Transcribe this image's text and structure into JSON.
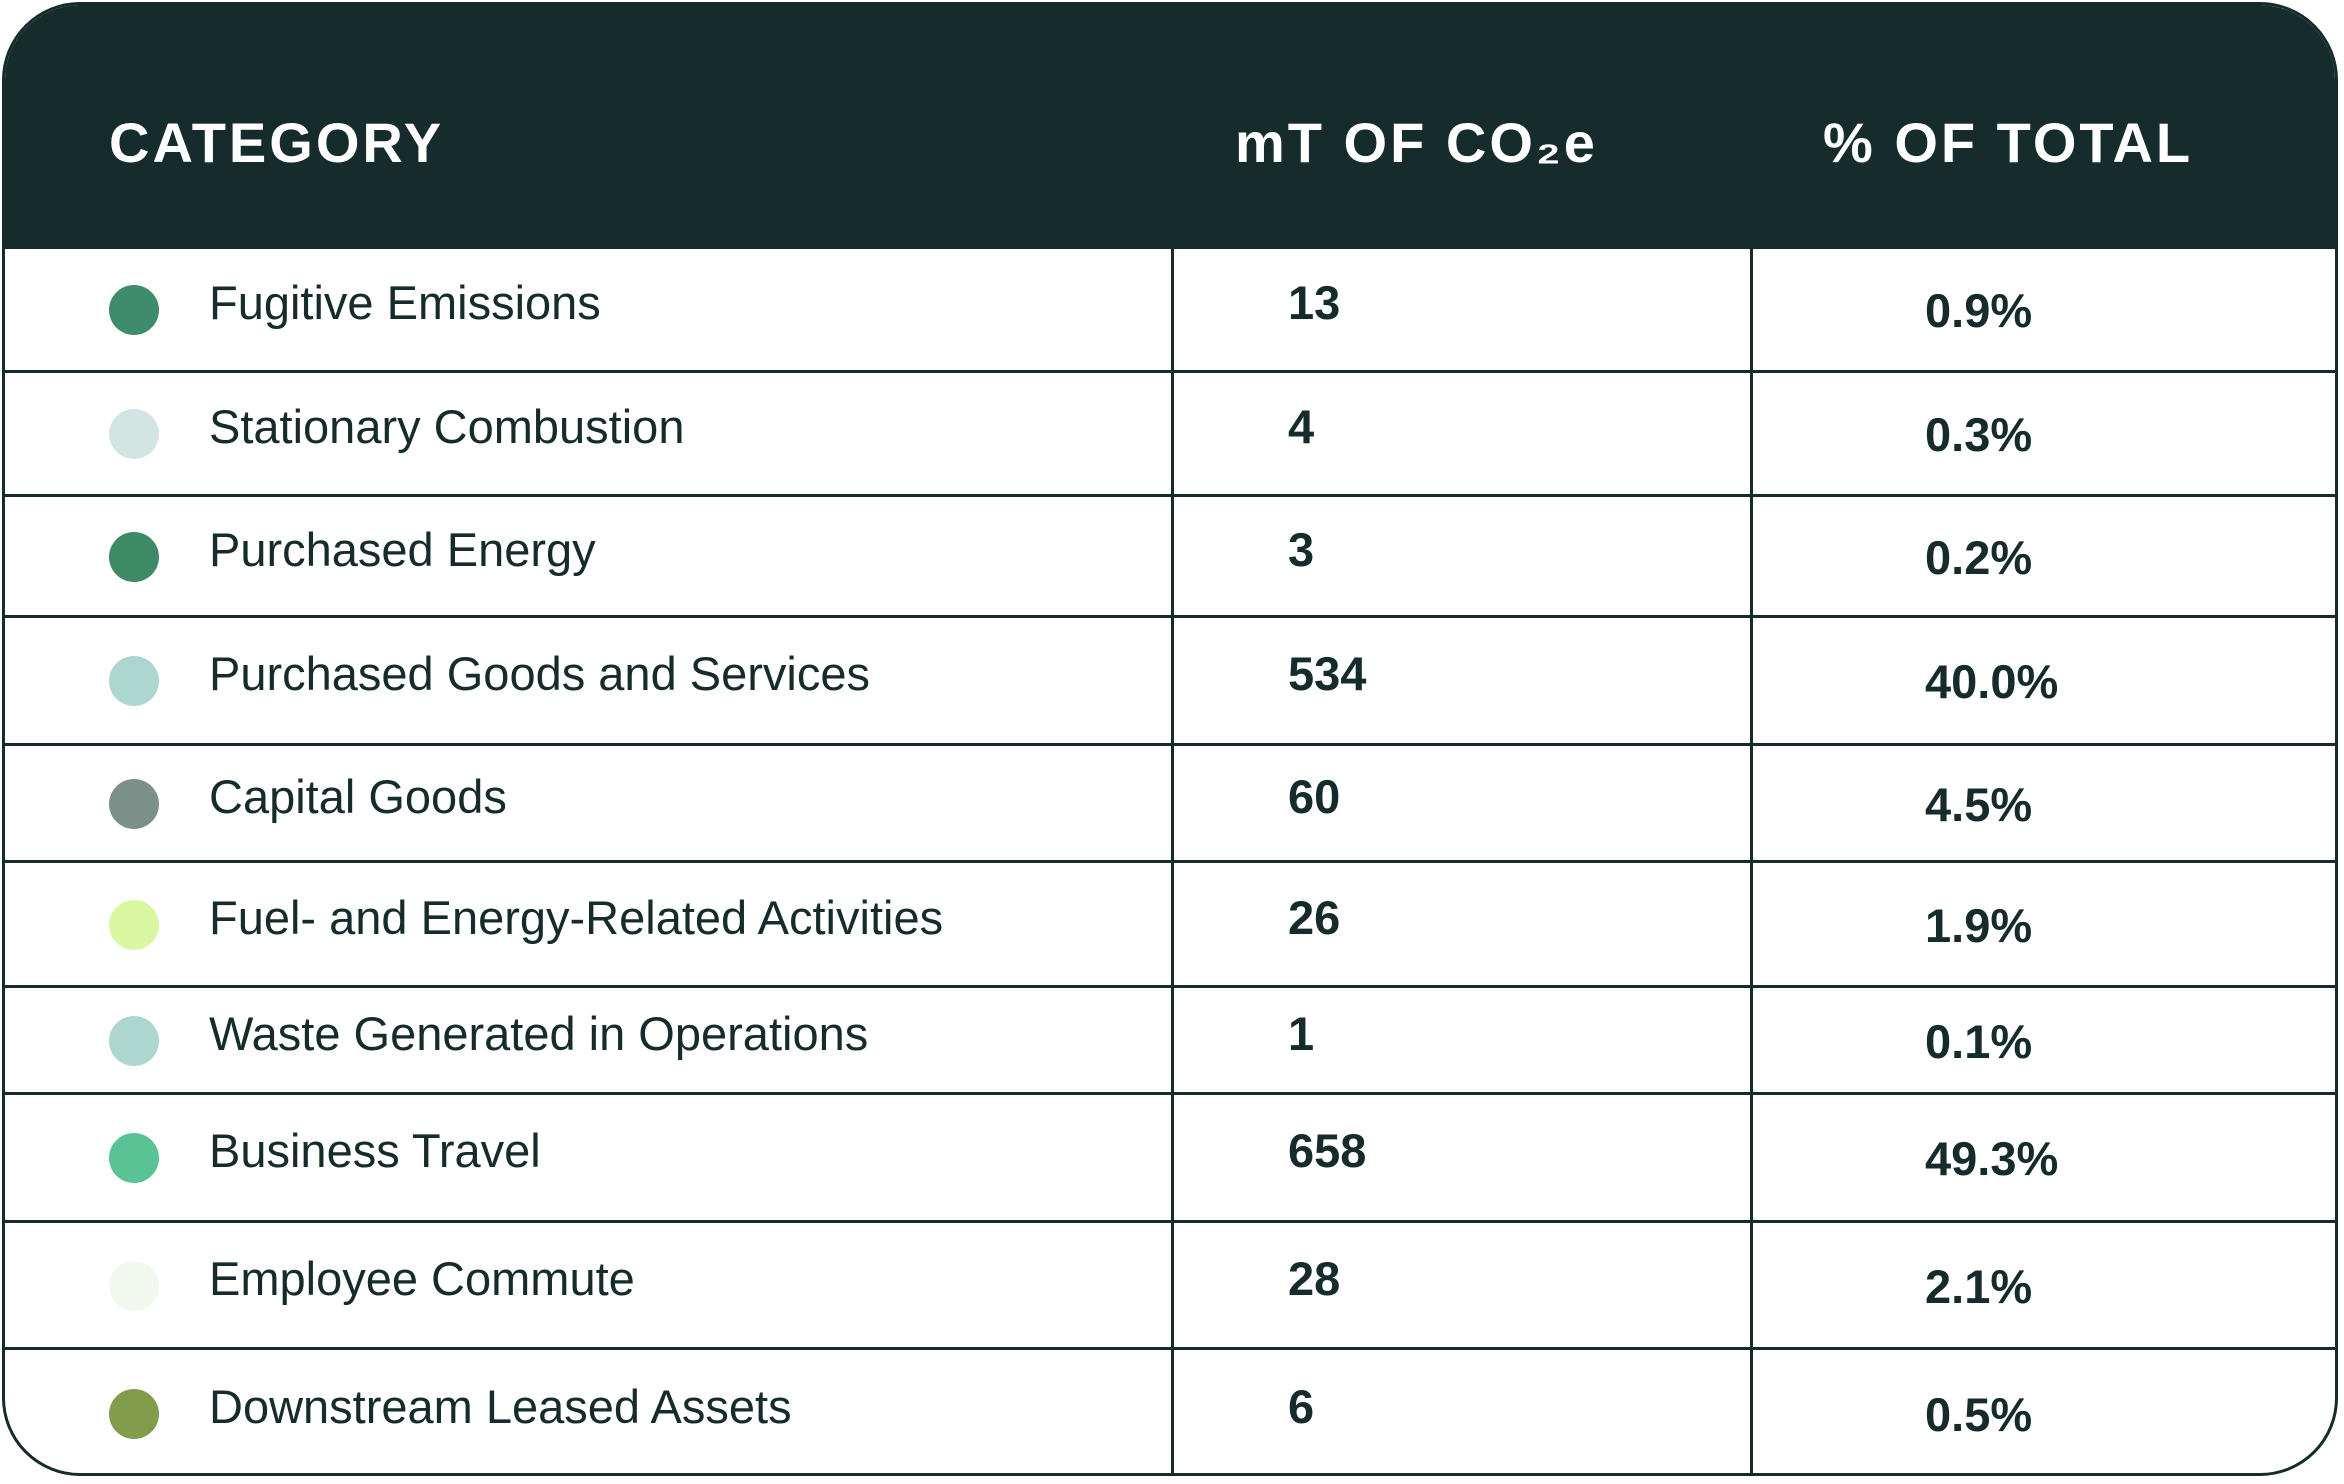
{
  "chart_data": {
    "type": "table",
    "columns": [
      "CATEGORY",
      "mT OF CO₂e",
      "% OF TOTAL"
    ],
    "rows": [
      {
        "category": "Fugitive Emissions",
        "value": "13",
        "percent": "0.9%",
        "color": "#3f8c6c"
      },
      {
        "category": "Stationary Combustion",
        "value": "4",
        "percent": "0.3%",
        "color": "#d3e5e3"
      },
      {
        "category": "Purchased Energy",
        "value": "3",
        "percent": "0.2%",
        "color": "#3e8a67"
      },
      {
        "category": "Purchased Goods and Services",
        "value": "534",
        "percent": "40.0%",
        "color": "#acd6cf"
      },
      {
        "category": "Capital Goods",
        "value": "60",
        "percent": "4.5%",
        "color": "#7b9088"
      },
      {
        "category": "Fuel- and Energy-Related Activities",
        "value": "26",
        "percent": "1.9%",
        "color": "#d9f7a0"
      },
      {
        "category": "Waste Generated in Operations",
        "value": "1",
        "percent": "0.1%",
        "color": "#acd6cf"
      },
      {
        "category": "Business Travel",
        "value": "658",
        "percent": "49.3%",
        "color": "#5ac396"
      },
      {
        "category": "Employee Commute",
        "value": "28",
        "percent": "2.1%",
        "color": "#f1f9ee"
      },
      {
        "category": "Downstream Leased Assets",
        "value": "6",
        "percent": "0.5%",
        "color": "#839b4c"
      }
    ]
  },
  "theme": {
    "header_bg": "#152b2c",
    "header_text": "#ffffff",
    "body_text": "#152b2c"
  }
}
